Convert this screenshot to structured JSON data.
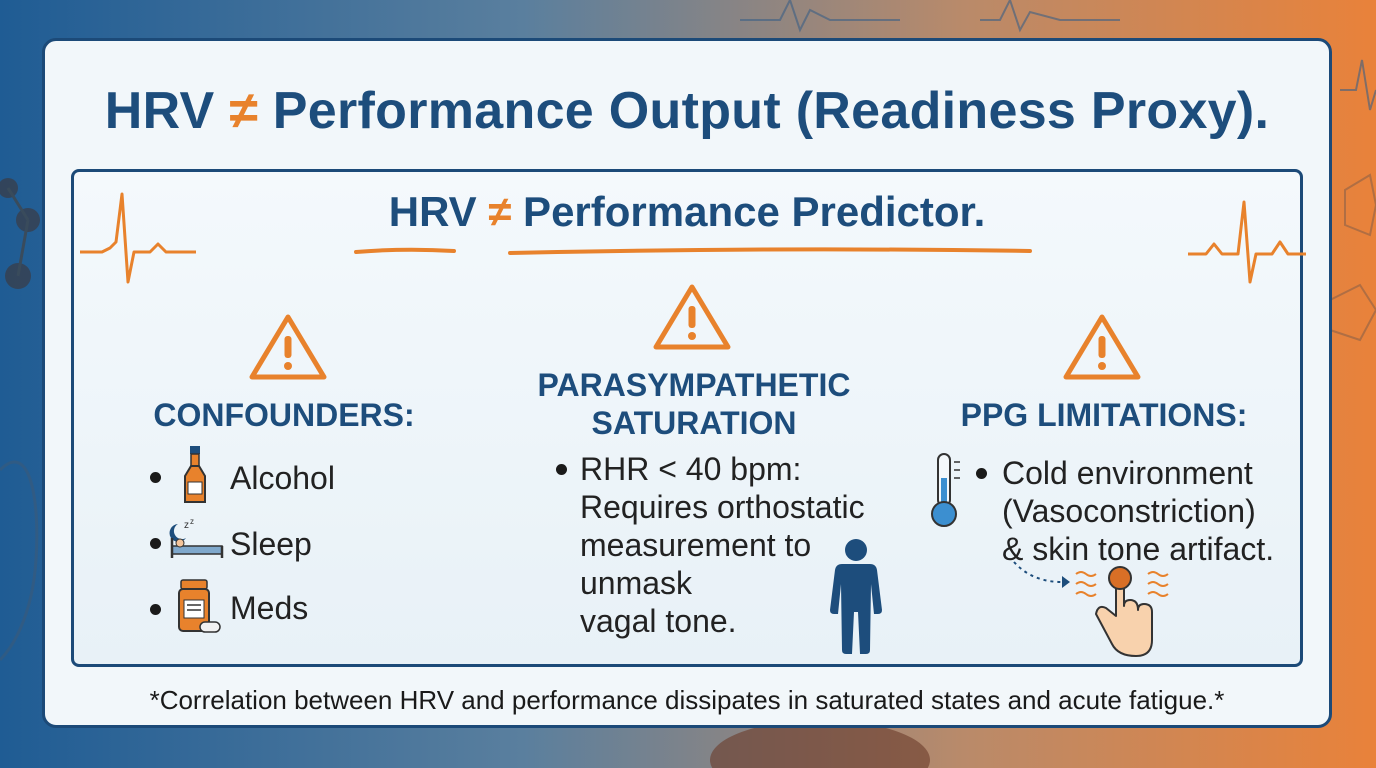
{
  "title": {
    "before": "HRV ",
    "symbol": "≠",
    "after": " Performance Output (Readiness Proxy)."
  },
  "subtitle": {
    "before": "HRV ",
    "symbol": "≠",
    "after": " Performance Predictor."
  },
  "columns": {
    "confounders": {
      "heading": "CONFOUNDERS:",
      "items": [
        "Alcohol",
        "Sleep",
        "Meds"
      ]
    },
    "parasympathetic": {
      "heading_line1": "PARASYMPATHETIC",
      "heading_line2": "SATURATION",
      "lines": [
        "RHR < 40 bpm:",
        "Requires orthostatic",
        "measurement to",
        "unmask",
        "vagal tone."
      ]
    },
    "ppg": {
      "heading": "PPG LIMITATIONS:",
      "lines": [
        "Cold environment",
        "(Vasoconstriction)",
        "& skin tone artifact."
      ]
    }
  },
  "footnote": "*Correlation between HRV and performance dissipates in saturated states and acute fatigue.*",
  "colors": {
    "navy": "#1d4d7c",
    "orange": "#e8822c",
    "card": "#f2f7fa"
  }
}
